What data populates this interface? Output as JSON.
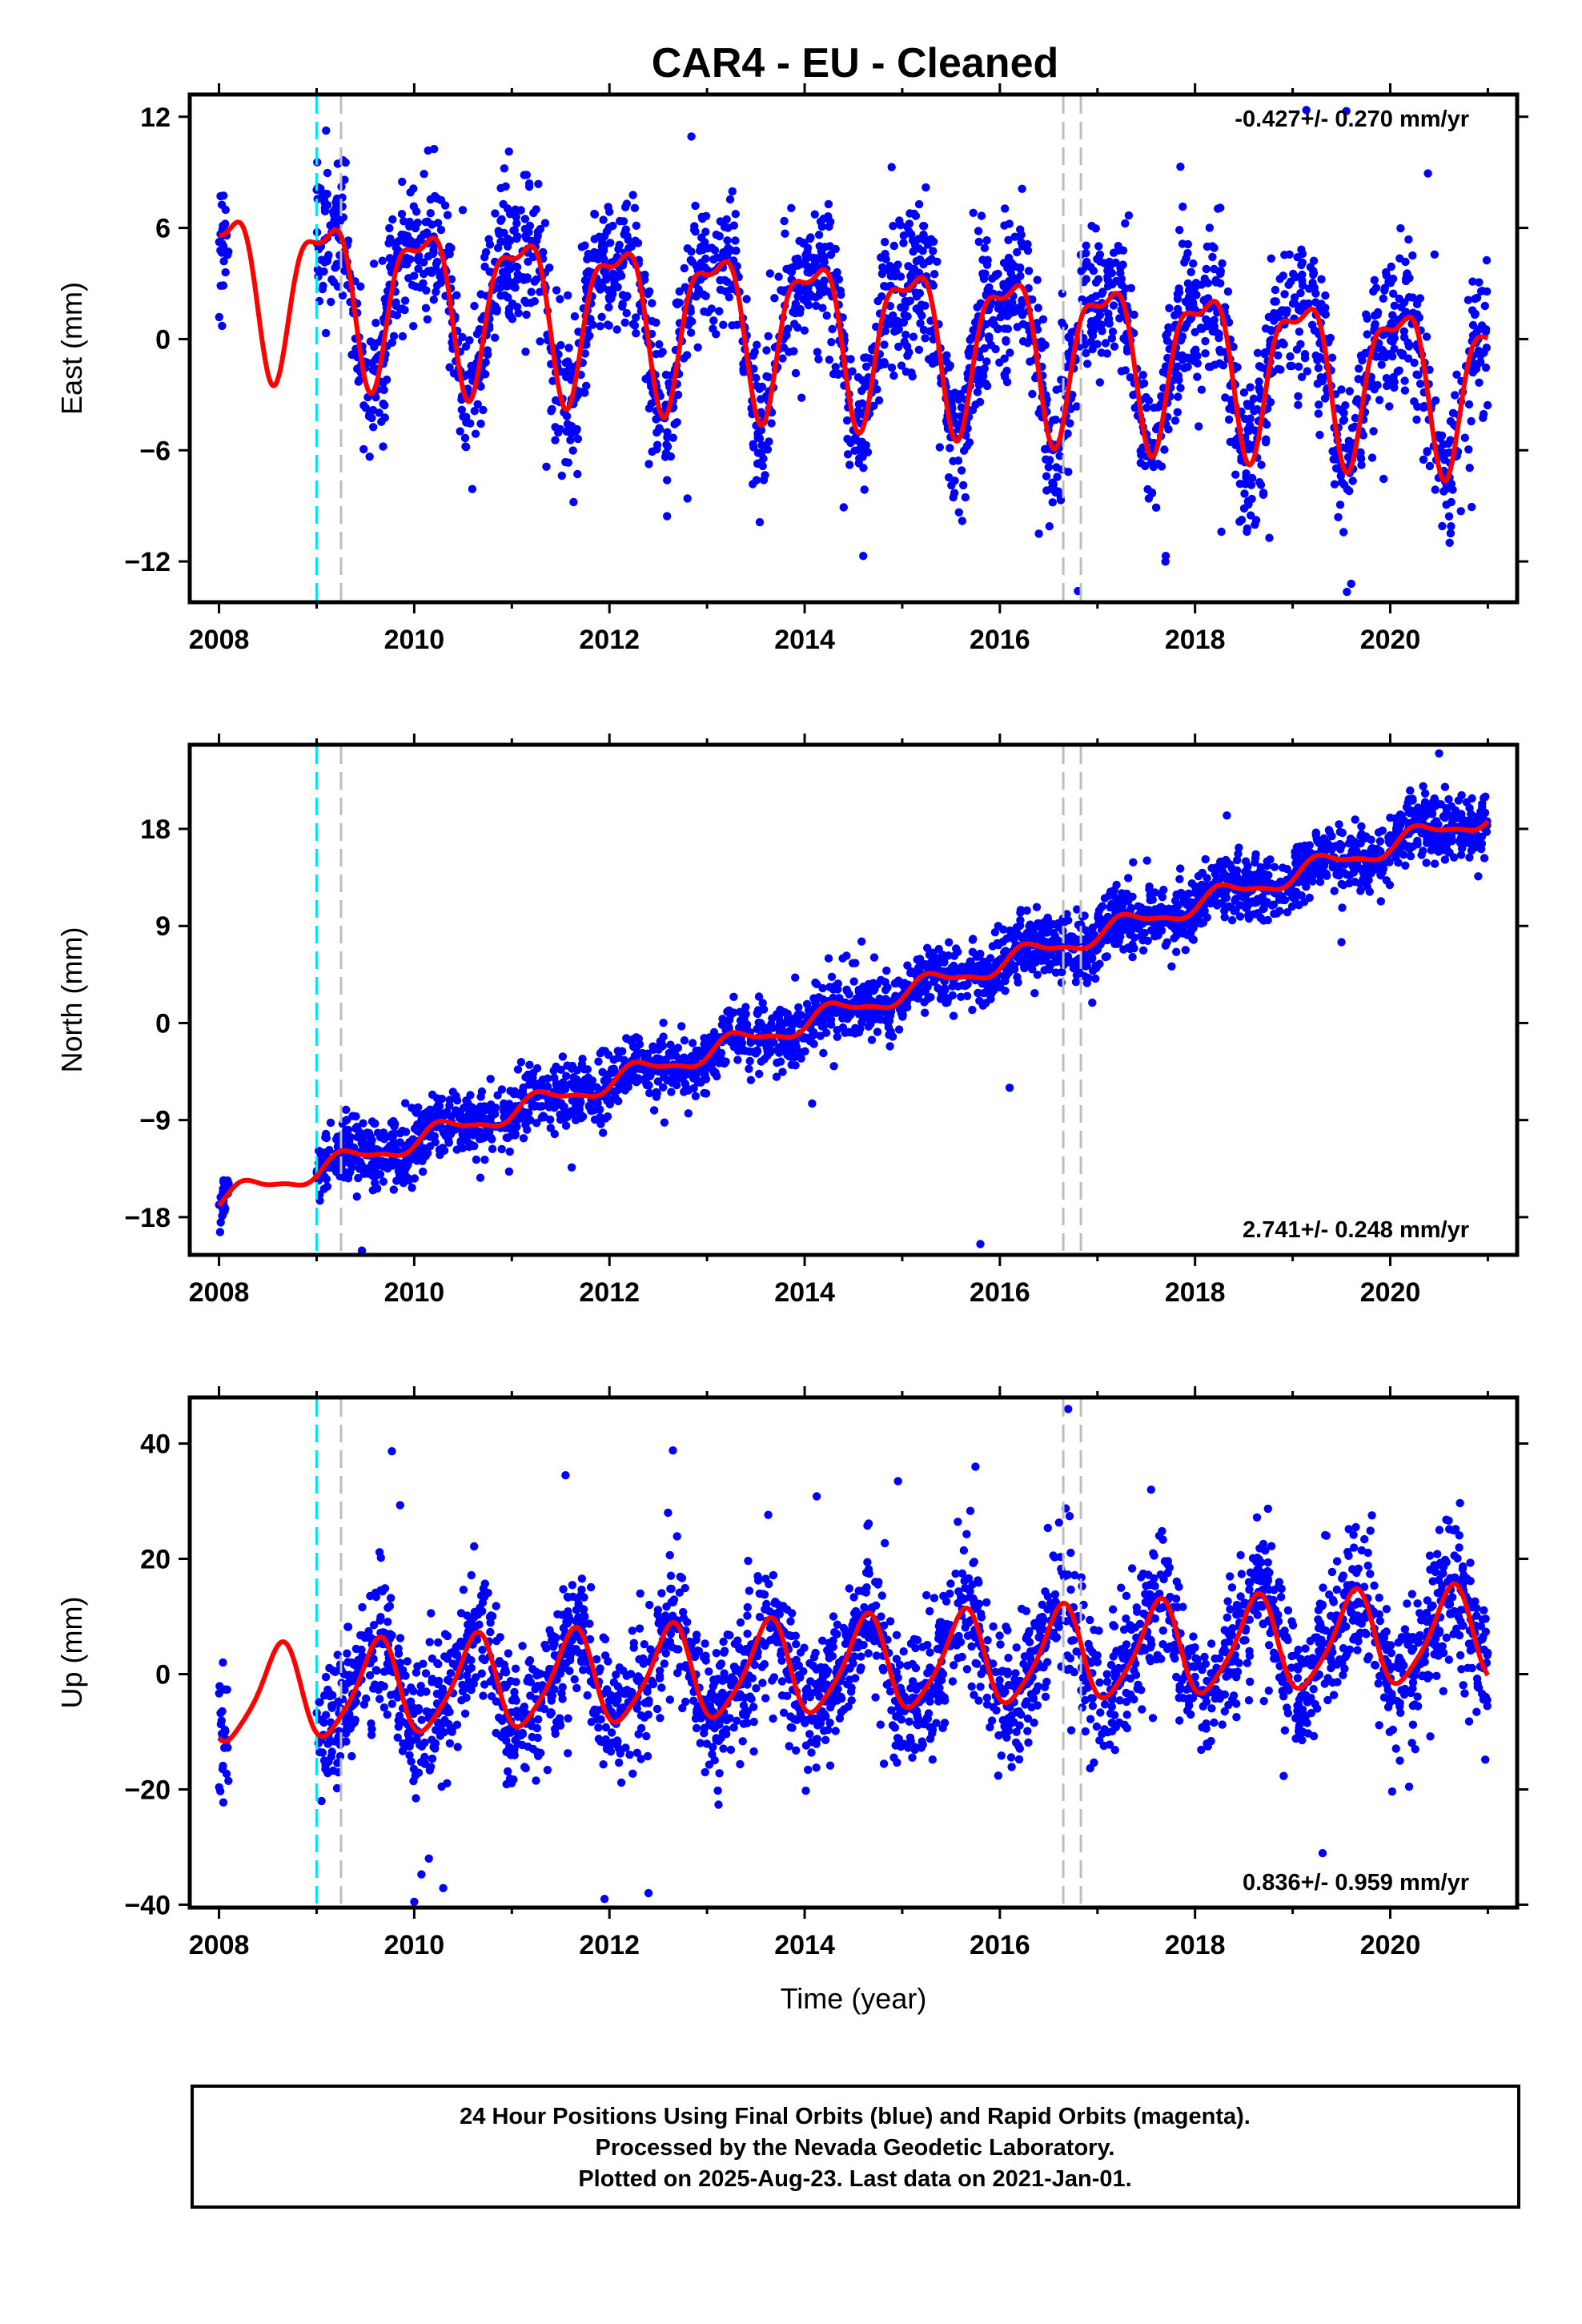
{
  "title": "CAR4  - EU - Cleaned",
  "chart_data": [
    {
      "type": "scatter",
      "ylabel": "East (mm)",
      "xlim": [
        2007.7,
        2021.3
      ],
      "ylim": [
        -14.2,
        13.2
      ],
      "yticks": [
        "12",
        "6",
        "0",
        "-6",
        "-12"
      ],
      "xticks": [
        "2008",
        "2010",
        "2012",
        "2014",
        "2016",
        "2018",
        "2020"
      ],
      "rate_text": "-0.427+/- 0.270 mm/yr",
      "rate_position": "top-right",
      "vertical_lines": {
        "cyan": [
          2009.0
        ],
        "gray": [
          2009.25,
          2016.65,
          2016.83
        ]
      },
      "model": {
        "rate": -0.427,
        "offset": 3.2,
        "annual_amp": 4.0,
        "annual_phase": 2009.07,
        "semi_amp": 1.5,
        "semi_phase": 2009.3
      },
      "scatter": {
        "start": 2008.0,
        "gap": [
          2008.1,
          2009.0
        ],
        "end": 2021.0,
        "noise": 2.0,
        "count": 2700
      },
      "outliers": [
        [
          2019.55,
          12.3
        ],
        [
          2017.85,
          9.3
        ],
        [
          2016.8,
          -13.6
        ],
        [
          2019.6,
          -13.2
        ],
        [
          2018.7,
          -8.4
        ],
        [
          2016.4,
          -10.5
        ],
        [
          2014.6,
          -11.7
        ],
        [
          2017.7,
          -11.7
        ],
        [
          2012.8,
          -8.6
        ]
      ]
    },
    {
      "type": "scatter",
      "ylabel": "North (mm)",
      "xlim": [
        2007.7,
        2021.3
      ],
      "ylim": [
        -21.5,
        25.8
      ],
      "yticks": [
        "18",
        "9",
        "0",
        "-9",
        "-18"
      ],
      "xticks": [
        "2008",
        "2010",
        "2012",
        "2014",
        "2016",
        "2018",
        "2020"
      ],
      "rate_text": "2.741+/- 0.248 mm/yr",
      "rate_position": "bottom-right",
      "vertical_lines": {
        "cyan": [
          2009.0
        ],
        "gray": [
          2009.25,
          2016.65,
          2016.83
        ]
      },
      "model": {
        "rate": 2.741,
        "offset": -16.4,
        "annual_amp": 0.9,
        "annual_phase": 2009.3,
        "semi_amp": 0.3,
        "semi_phase": 2009.2
      },
      "scatter": {
        "start": 2008.0,
        "gap": [
          2008.1,
          2009.0
        ],
        "end": 2021.0,
        "noise": 1.5,
        "count": 2700
      },
      "outliers": [
        [
          2020.5,
          25.0
        ],
        [
          2015.8,
          -20.5
        ],
        [
          2016.1,
          -6.0
        ],
        [
          2014.3,
          -4.0
        ],
        [
          2019.5,
          7.5
        ]
      ]
    },
    {
      "type": "scatter",
      "ylabel": "Up (mm)",
      "xlabel": "Time (year)",
      "xlim": [
        2007.7,
        2021.3
      ],
      "ylim": [
        -40.5,
        48.0
      ],
      "yticks": [
        "40",
        "20",
        "0",
        "-20",
        "-40"
      ],
      "xticks": [
        "2008",
        "2010",
        "2012",
        "2014",
        "2016",
        "2018",
        "2020"
      ],
      "rate_text": "0.836+/- 0.959 mm/yr",
      "rate_position": "bottom-right",
      "vertical_lines": {
        "cyan": [
          2009.0
        ],
        "gray": [
          2009.25,
          2016.65,
          2016.83
        ]
      },
      "model": {
        "rate": 0.836,
        "offset": -4.0,
        "annual_amp": 8.0,
        "annual_phase": 2008.62,
        "semi_amp": 1.5,
        "semi_phase": 2008.7
      },
      "scatter": {
        "start": 2008.0,
        "gap": [
          2008.1,
          2009.0
        ],
        "end": 2021.0,
        "noise": 6.0,
        "count": 2700
      },
      "outliers": [
        [
          2016.7,
          46.0
        ],
        [
          2012.65,
          38.8
        ],
        [
          2011.55,
          34.5
        ],
        [
          2015.75,
          36.0
        ],
        [
          2010.0,
          -39.5
        ],
        [
          2012.4,
          -38.0
        ],
        [
          2011.95,
          -39.0
        ],
        [
          2010.15,
          -32.0
        ],
        [
          2017.55,
          32.0
        ],
        [
          2012.6,
          28.0
        ]
      ]
    }
  ],
  "footer": {
    "line1": "24 Hour Positions Using Final Orbits (blue) and Rapid Orbits (magenta).",
    "line2": "Processed by the Nevada Geodetic Laboratory.",
    "line3": "Plotted on 2025-Aug-23. Last data on 2021-Jan-01."
  },
  "colors": {
    "data": "#0000ff",
    "model": "#ff0000",
    "cyan_line": "#00e5ff",
    "gray_line": "#bdbdbd",
    "frame": "#000000"
  }
}
